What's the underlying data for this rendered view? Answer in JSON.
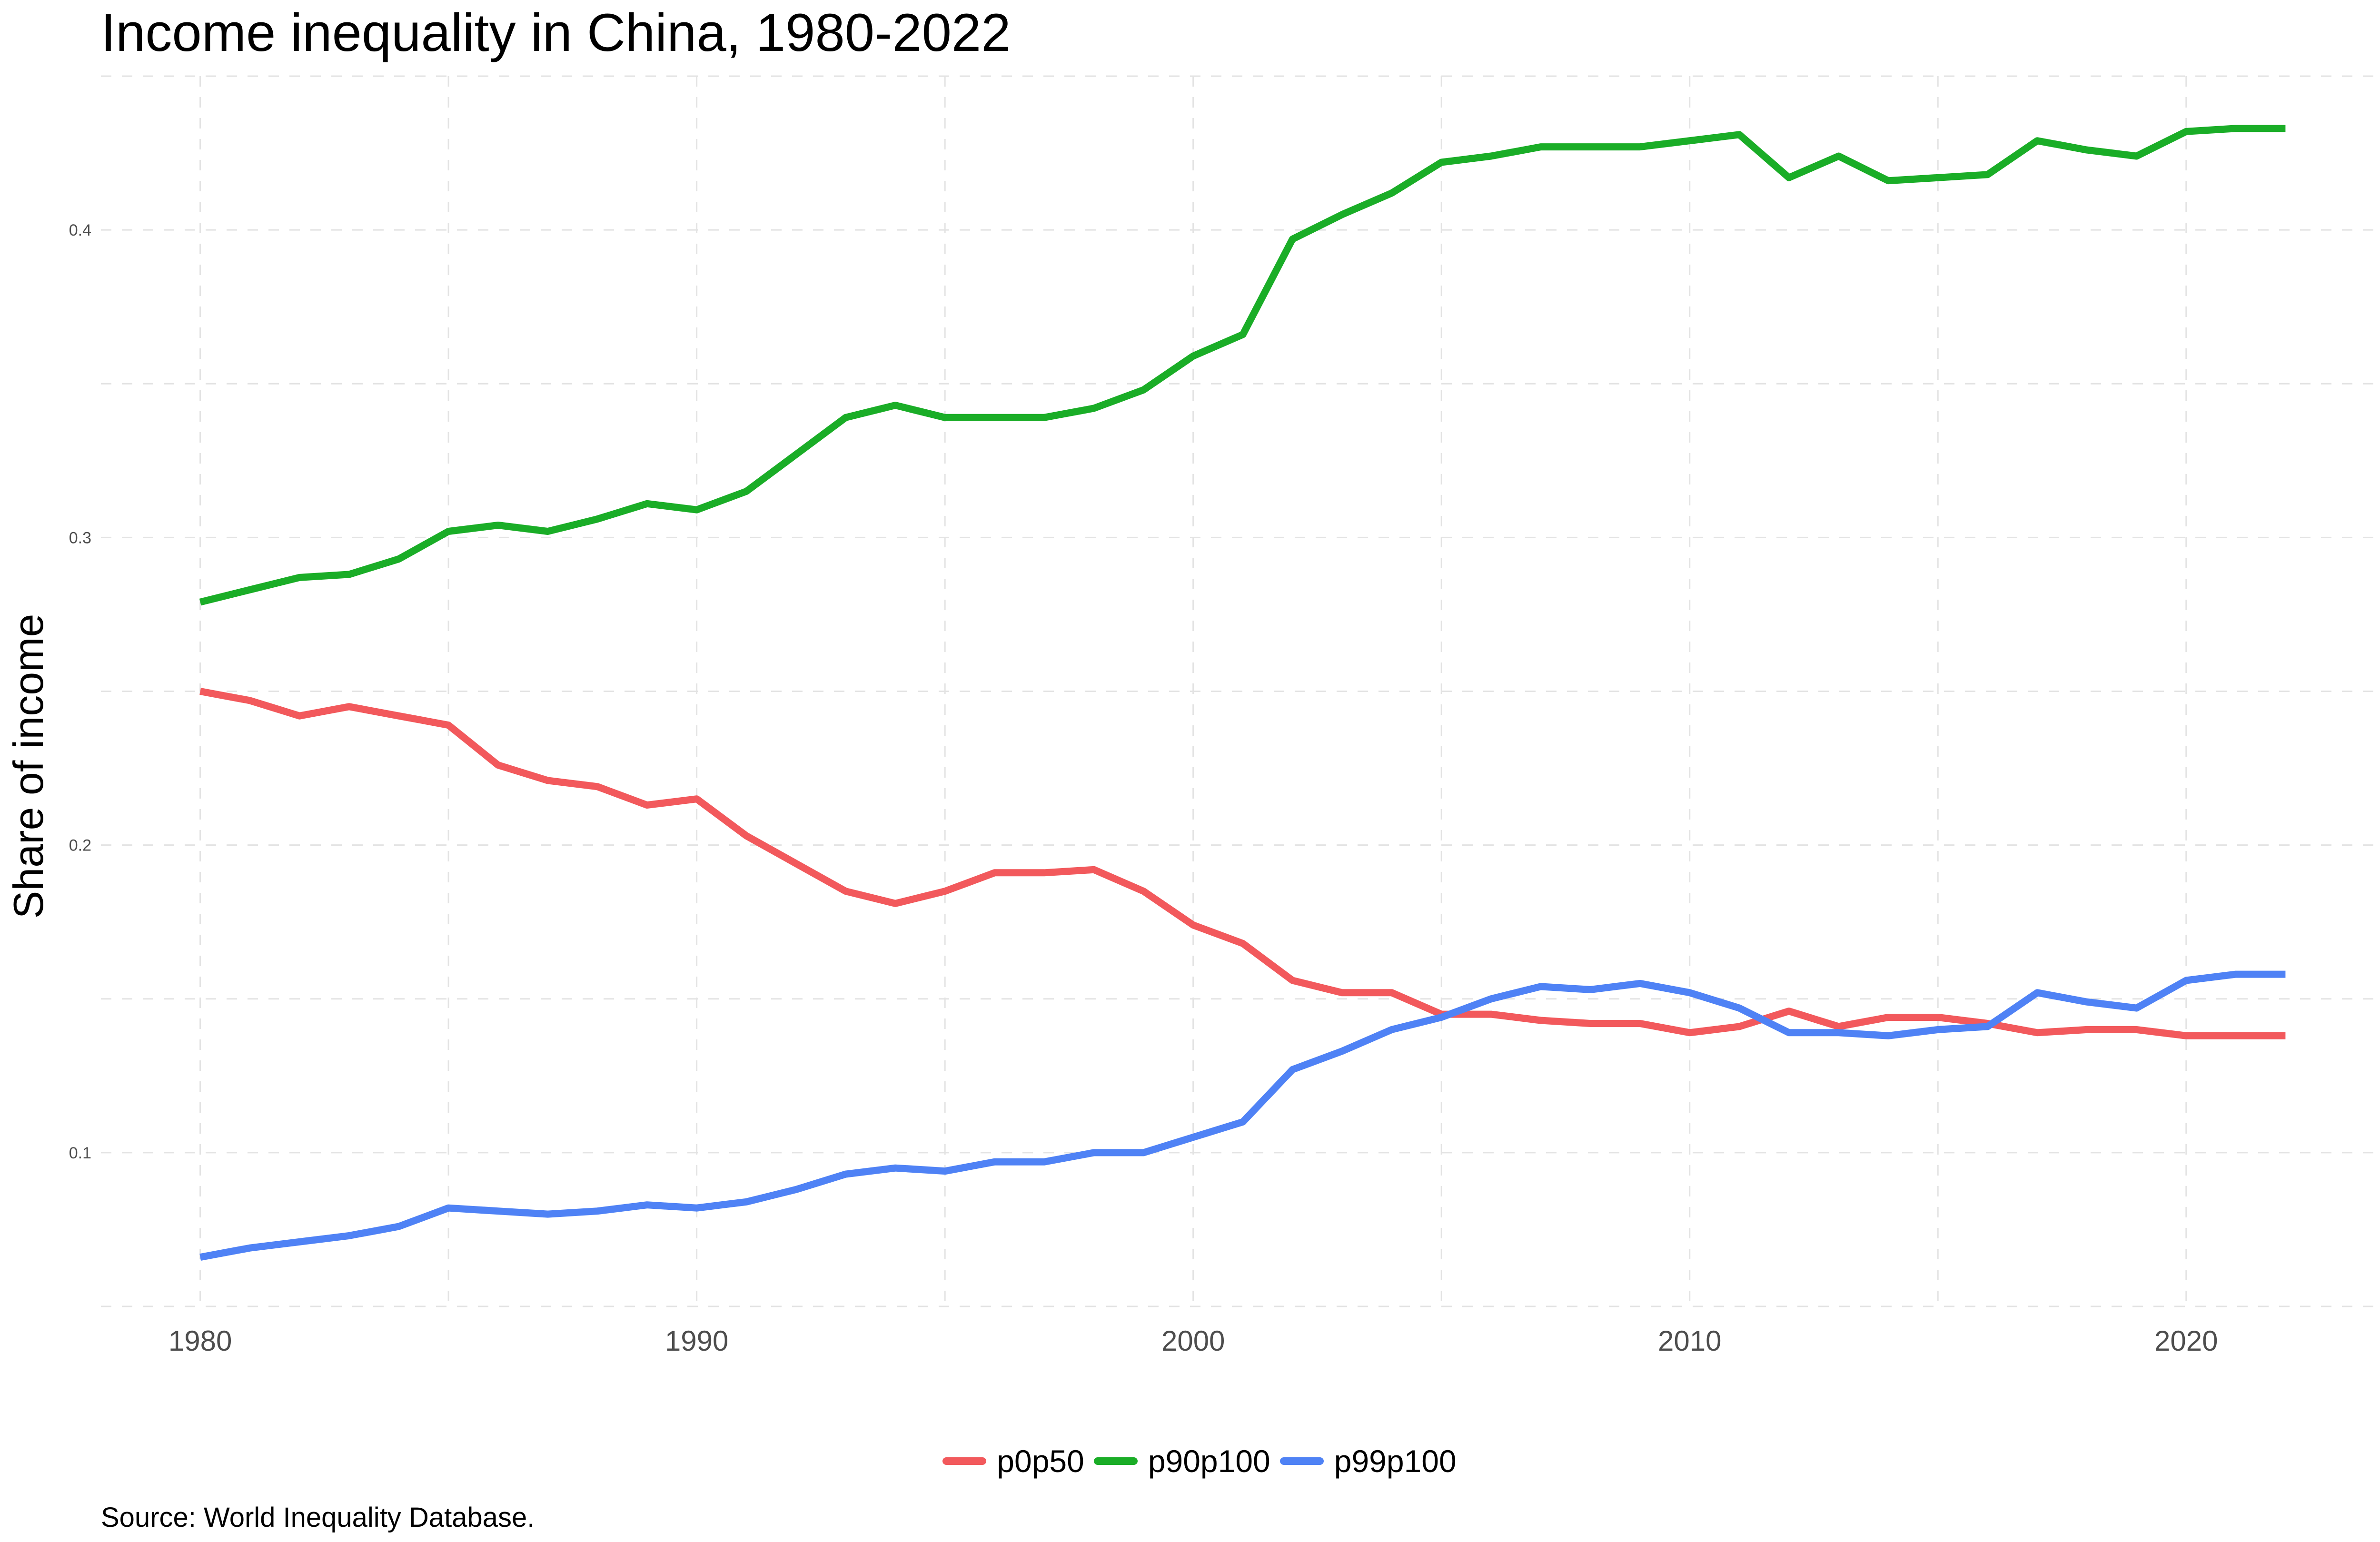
{
  "chart_data": {
    "type": "line",
    "title": "Income inequality in China, 1980-2022",
    "xlabel": "",
    "ylabel": "Share of income",
    "caption": "Source: World Inequality Database.",
    "xlim": [
      1978,
      2024
    ],
    "ylim": [
      0.05,
      0.45
    ],
    "x_ticks": [
      1980,
      1990,
      2000,
      2010,
      2020
    ],
    "y_ticks": [
      0.1,
      0.2,
      0.3,
      0.4
    ],
    "y_tick_labels": [
      "0.1",
      "0.2",
      "0.3",
      "0.4"
    ],
    "grid": true,
    "legend_position": "bottom",
    "x": [
      1980,
      1981,
      1982,
      1983,
      1984,
      1985,
      1986,
      1987,
      1988,
      1989,
      1990,
      1991,
      1992,
      1993,
      1994,
      1995,
      1996,
      1997,
      1998,
      1999,
      2000,
      2001,
      2002,
      2003,
      2004,
      2005,
      2006,
      2007,
      2008,
      2009,
      2010,
      2011,
      2012,
      2013,
      2014,
      2015,
      2016,
      2017,
      2018,
      2019,
      2020,
      2021,
      2022
    ],
    "series": [
      {
        "name": "p0p50",
        "color": "#f2595c",
        "values": [
          0.25,
          0.247,
          0.242,
          0.245,
          0.242,
          0.239,
          0.226,
          0.221,
          0.219,
          0.213,
          0.215,
          0.203,
          0.194,
          0.185,
          0.181,
          0.185,
          0.191,
          0.191,
          0.192,
          0.185,
          0.174,
          0.168,
          0.156,
          0.152,
          0.152,
          0.145,
          0.145,
          0.143,
          0.142,
          0.142,
          0.139,
          0.141,
          0.146,
          0.141,
          0.144,
          0.144,
          0.142,
          0.139,
          0.14,
          0.14,
          0.138,
          0.138,
          0.138
        ]
      },
      {
        "name": "p90p100",
        "color": "#1aad27",
        "values": [
          0.279,
          0.283,
          0.287,
          0.288,
          0.293,
          0.302,
          0.304,
          0.302,
          0.306,
          0.311,
          0.309,
          0.315,
          0.327,
          0.339,
          0.343,
          0.339,
          0.339,
          0.339,
          0.342,
          0.348,
          0.359,
          0.366,
          0.397,
          0.405,
          0.412,
          0.422,
          0.424,
          0.427,
          0.427,
          0.427,
          0.429,
          0.431,
          0.417,
          0.424,
          0.416,
          0.417,
          0.418,
          0.429,
          0.426,
          0.424,
          0.432,
          0.433,
          0.433
        ]
      },
      {
        "name": "p99p100",
        "color": "#4f82f5",
        "values": [
          0.066,
          0.069,
          0.071,
          0.073,
          0.076,
          0.082,
          0.081,
          0.08,
          0.081,
          0.083,
          0.082,
          0.084,
          0.088,
          0.093,
          0.095,
          0.094,
          0.097,
          0.097,
          0.1,
          0.1,
          0.105,
          0.11,
          0.127,
          0.133,
          0.14,
          0.144,
          0.15,
          0.154,
          0.153,
          0.155,
          0.152,
          0.147,
          0.139,
          0.139,
          0.138,
          0.14,
          0.141,
          0.152,
          0.149,
          0.147,
          0.156,
          0.158,
          0.158
        ]
      }
    ]
  }
}
